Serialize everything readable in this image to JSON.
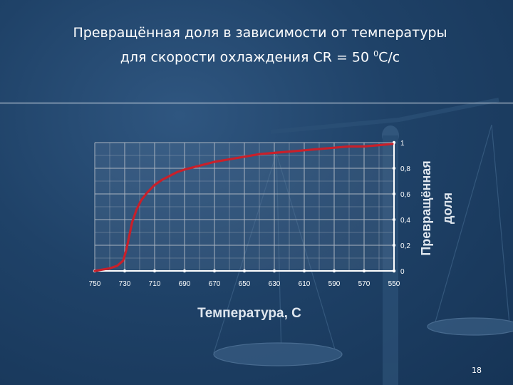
{
  "slide": {
    "title_line1": "Превращённая доля в зависимости от температуры",
    "title_line2_prefix": "для скорости охлаждения CR = 50 ",
    "title_line2_sup": "0",
    "title_line2_suffix": "C/c",
    "page_number": "18"
  },
  "colors": {
    "curve": "#c8202a",
    "grid": "#a9b3bf",
    "axis": "#ffffff"
  },
  "chart_data": {
    "type": "line",
    "xlabel": "Температура, С",
    "ylabel_line1": "Превращённая",
    "ylabel_line2": "доля",
    "x_tick_labels": [
      "750",
      "730",
      "710",
      "690",
      "670",
      "650",
      "630",
      "610",
      "590",
      "570",
      "550"
    ],
    "y_tick_labels": [
      "0",
      "0,2",
      "0,4",
      "0,6",
      "0,8",
      "1"
    ],
    "xlim": [
      750,
      550
    ],
    "ylim": [
      0,
      1
    ],
    "x_reversed": true,
    "grid": true,
    "series": [
      {
        "x": [
          750,
          745,
          740,
          735,
          731,
          729,
          727,
          725,
          722,
          719,
          715,
          710,
          705,
          700,
          695,
          690,
          680,
          670,
          660,
          650,
          640,
          630,
          620,
          610,
          600,
          590,
          580,
          570,
          560,
          551
        ],
        "y": [
          0.0,
          0.01,
          0.02,
          0.04,
          0.08,
          0.16,
          0.27,
          0.38,
          0.48,
          0.55,
          0.61,
          0.67,
          0.71,
          0.74,
          0.77,
          0.79,
          0.82,
          0.85,
          0.87,
          0.89,
          0.91,
          0.92,
          0.93,
          0.94,
          0.95,
          0.96,
          0.97,
          0.97,
          0.98,
          0.99
        ]
      }
    ]
  }
}
